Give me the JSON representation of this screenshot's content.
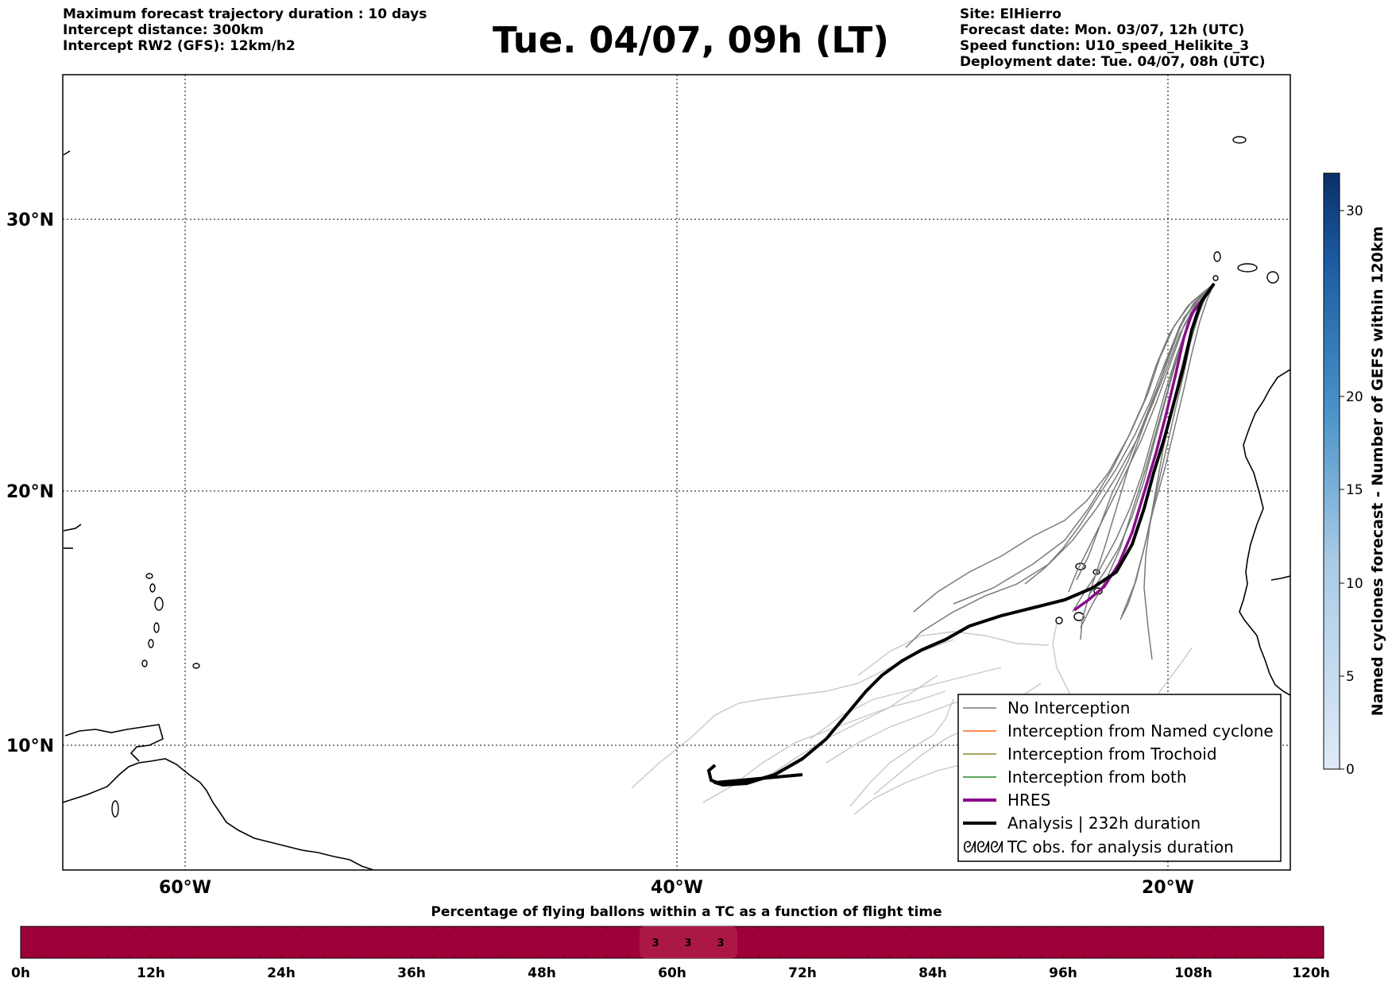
{
  "header": {
    "left": [
      "Maximum forecast trajectory duration : 10 days",
      "Intercept distance: 300km",
      "Intercept RW2 (GFS):  12km/h2"
    ],
    "title": "Tue. 04/07, 09h (LT)",
    "right": [
      "Site: ElHierro",
      "Forecast date: Mon. 03/07, 12h (UTC)",
      "Speed function: U10_speed_Helikite_3",
      "Deployment date: Tue. 04/07, 08h (UTC)"
    ]
  },
  "map": {
    "lat_labels": [
      "30°N",
      "20°N",
      "10°N"
    ],
    "lon_labels": [
      "60°W",
      "40°W",
      "20°W"
    ],
    "colors": {
      "no_interception": "#7a7a7a",
      "faded_member": "#c8c8c8",
      "named_cyclone": "#ff6a1a",
      "trochoid": "#8a8a2a",
      "both": "#2a8a2a",
      "hres": "#8b0a8b",
      "analysis": "#000000"
    }
  },
  "legend": {
    "items": [
      "No Interception",
      "Interception from Named cyclone",
      "Interception from Trochoid",
      "Interception from both",
      "HRES",
      "Analysis | 232h duration",
      "TC obs. for analysis duration"
    ]
  },
  "colorbar": {
    "label": "Named cyclones forecast - Number of GEFS within 120km",
    "ticks": [
      "30",
      "20",
      "15",
      "10",
      "5",
      "0"
    ],
    "min": 0,
    "max": 33
  },
  "bottom_bar": {
    "title": "Percentage of flying ballons within a TC as a function of flight time",
    "ticks": [
      "0h",
      "12h",
      "24h",
      "36h",
      "48h",
      "60h",
      "72h",
      "84h",
      "96h",
      "108h",
      "120h"
    ],
    "cell_labels": [
      "3",
      "3",
      "3"
    ],
    "bar_color": "#9e0039"
  }
}
